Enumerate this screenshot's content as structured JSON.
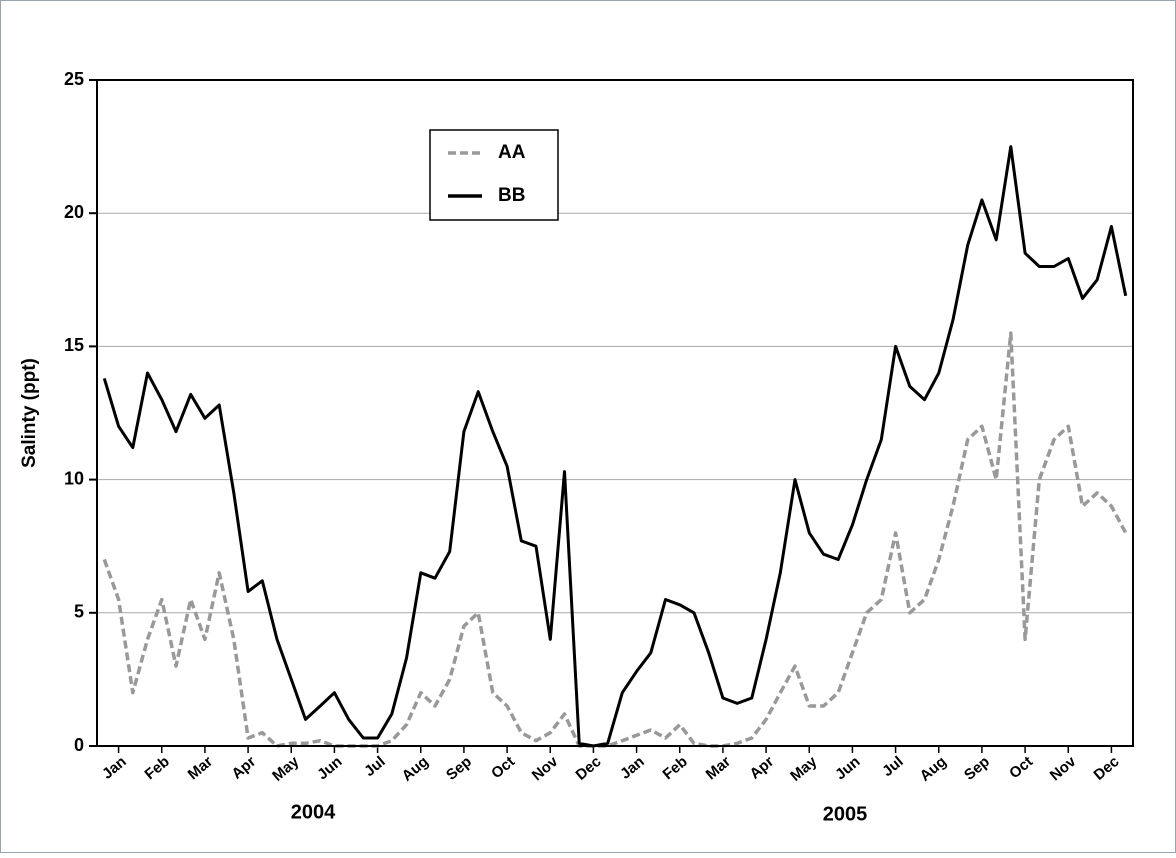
{
  "chart_data": {
    "type": "line",
    "y_label": "Salinty (ppt)",
    "annotations": [
      "2004",
      "2005"
    ],
    "xlim": [
      0,
      24
    ],
    "xticks": [
      {
        "value": 0.5,
        "label": "Jan"
      },
      {
        "value": 1.5,
        "label": "Feb"
      },
      {
        "value": 2.5,
        "label": "Mar"
      },
      {
        "value": 3.5,
        "label": "Apr"
      },
      {
        "value": 4.5,
        "label": "May"
      },
      {
        "value": 5.5,
        "label": "Jun"
      },
      {
        "value": 6.5,
        "label": "Jul"
      },
      {
        "value": 7.5,
        "label": "Aug"
      },
      {
        "value": 8.5,
        "label": "Sep"
      },
      {
        "value": 9.5,
        "label": "Oct"
      },
      {
        "value": 10.5,
        "label": "Nov"
      },
      {
        "value": 11.5,
        "label": "Dec"
      },
      {
        "value": 12.5,
        "label": "Jan"
      },
      {
        "value": 13.5,
        "label": "Feb"
      },
      {
        "value": 14.5,
        "label": "Mar"
      },
      {
        "value": 15.5,
        "label": "Apr"
      },
      {
        "value": 16.5,
        "label": "May"
      },
      {
        "value": 17.5,
        "label": "Jun"
      },
      {
        "value": 18.5,
        "label": "Jul"
      },
      {
        "value": 19.5,
        "label": "Aug"
      },
      {
        "value": 20.5,
        "label": "Sep"
      },
      {
        "value": 21.5,
        "label": "Oct"
      },
      {
        "value": 22.5,
        "label": "Nov"
      },
      {
        "value": 23.5,
        "label": "Dec"
      }
    ],
    "ylim": [
      0,
      25
    ],
    "yticks": [
      0,
      5,
      10,
      15,
      20,
      25
    ],
    "grid": true,
    "legend": "upper center",
    "x": [
      0.17,
      0.5,
      0.83,
      1.17,
      1.5,
      1.83,
      2.17,
      2.5,
      2.83,
      3.17,
      3.5,
      3.83,
      4.17,
      4.5,
      4.83,
      5.17,
      5.5,
      5.83,
      6.17,
      6.5,
      6.83,
      7.17,
      7.5,
      7.83,
      8.17,
      8.5,
      8.83,
      9.17,
      9.5,
      9.83,
      10.17,
      10.5,
      10.83,
      11.17,
      11.5,
      11.83,
      12.17,
      12.5,
      12.83,
      13.17,
      13.5,
      13.83,
      14.17,
      14.5,
      14.83,
      15.17,
      15.5,
      15.83,
      16.17,
      16.5,
      16.83,
      17.17,
      17.5,
      17.83,
      18.17,
      18.5,
      18.83,
      19.17,
      19.5,
      19.83,
      20.17,
      20.5,
      20.83,
      21.17,
      21.5,
      21.83,
      22.17,
      22.5,
      22.83,
      23.17,
      23.5,
      23.83
    ],
    "series": [
      {
        "name": "AA",
        "color": "#999999",
        "dashed": true,
        "values": [
          7.0,
          5.5,
          2.0,
          4.0,
          5.5,
          3.0,
          5.5,
          4.0,
          6.5,
          4.0,
          0.3,
          0.5,
          0.0,
          0.1,
          0.1,
          0.2,
          0.0,
          0.0,
          0.0,
          0.0,
          0.2,
          0.8,
          2.0,
          1.5,
          2.5,
          4.5,
          5.0,
          2.0,
          1.5,
          0.5,
          0.2,
          0.5,
          1.2,
          0.0,
          0.0,
          0.0,
          0.2,
          0.4,
          0.6,
          0.3,
          0.8,
          0.1,
          0.0,
          0.0,
          0.1,
          0.3,
          1.0,
          2.0,
          3.0,
          1.5,
          1.5,
          2.0,
          3.5,
          5.0,
          5.5,
          8.0,
          5.0,
          5.5,
          7.0,
          9.0,
          11.5,
          12.0,
          10.0,
          15.5,
          4.0,
          10.0,
          11.5,
          12.0,
          9.0,
          9.5,
          9.0,
          8.0
        ]
      },
      {
        "name": "BB",
        "color": "#000000",
        "dashed": false,
        "values": [
          13.8,
          12.0,
          11.2,
          14.0,
          13.0,
          11.8,
          13.2,
          12.3,
          12.8,
          9.5,
          5.8,
          6.2,
          4.0,
          2.5,
          1.0,
          1.5,
          2.0,
          1.0,
          0.3,
          0.3,
          1.2,
          3.3,
          6.5,
          6.3,
          7.3,
          11.8,
          13.3,
          11.8,
          10.5,
          7.7,
          7.5,
          4.0,
          10.3,
          0.1,
          0.0,
          0.1,
          2.0,
          2.8,
          3.5,
          5.5,
          5.3,
          5.0,
          3.5,
          1.8,
          1.6,
          1.8,
          4.0,
          6.5,
          10.0,
          8.0,
          7.2,
          7.0,
          8.3,
          10.0,
          11.5,
          15.0,
          13.5,
          13.0,
          14.0,
          16.0,
          18.8,
          20.5,
          19.0,
          22.5,
          18.5,
          18.0,
          18.0,
          18.3,
          16.8,
          17.5,
          19.5,
          16.9
        ]
      }
    ]
  }
}
